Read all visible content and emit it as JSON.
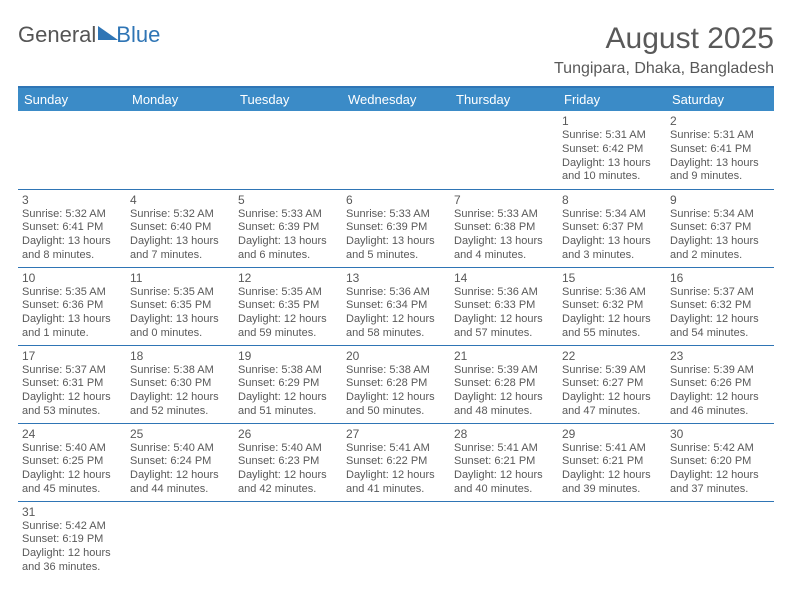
{
  "logo": {
    "general": "General",
    "blue": "Blue"
  },
  "title": "August 2025",
  "location": "Tungipara, Dhaka, Bangladesh",
  "colors": {
    "header_bg": "#3b8bc7",
    "header_border": "#2f75b5",
    "cell_border": "#2f75b5",
    "text": "#595959",
    "white": "#ffffff"
  },
  "weekdays": [
    "Sunday",
    "Monday",
    "Tuesday",
    "Wednesday",
    "Thursday",
    "Friday",
    "Saturday"
  ],
  "weeks": [
    [
      null,
      null,
      null,
      null,
      null,
      {
        "n": "1",
        "sr": "Sunrise: 5:31 AM",
        "ss": "Sunset: 6:42 PM",
        "d1": "Daylight: 13 hours",
        "d2": "and 10 minutes."
      },
      {
        "n": "2",
        "sr": "Sunrise: 5:31 AM",
        "ss": "Sunset: 6:41 PM",
        "d1": "Daylight: 13 hours",
        "d2": "and 9 minutes."
      }
    ],
    [
      {
        "n": "3",
        "sr": "Sunrise: 5:32 AM",
        "ss": "Sunset: 6:41 PM",
        "d1": "Daylight: 13 hours",
        "d2": "and 8 minutes."
      },
      {
        "n": "4",
        "sr": "Sunrise: 5:32 AM",
        "ss": "Sunset: 6:40 PM",
        "d1": "Daylight: 13 hours",
        "d2": "and 7 minutes."
      },
      {
        "n": "5",
        "sr": "Sunrise: 5:33 AM",
        "ss": "Sunset: 6:39 PM",
        "d1": "Daylight: 13 hours",
        "d2": "and 6 minutes."
      },
      {
        "n": "6",
        "sr": "Sunrise: 5:33 AM",
        "ss": "Sunset: 6:39 PM",
        "d1": "Daylight: 13 hours",
        "d2": "and 5 minutes."
      },
      {
        "n": "7",
        "sr": "Sunrise: 5:33 AM",
        "ss": "Sunset: 6:38 PM",
        "d1": "Daylight: 13 hours",
        "d2": "and 4 minutes."
      },
      {
        "n": "8",
        "sr": "Sunrise: 5:34 AM",
        "ss": "Sunset: 6:37 PM",
        "d1": "Daylight: 13 hours",
        "d2": "and 3 minutes."
      },
      {
        "n": "9",
        "sr": "Sunrise: 5:34 AM",
        "ss": "Sunset: 6:37 PM",
        "d1": "Daylight: 13 hours",
        "d2": "and 2 minutes."
      }
    ],
    [
      {
        "n": "10",
        "sr": "Sunrise: 5:35 AM",
        "ss": "Sunset: 6:36 PM",
        "d1": "Daylight: 13 hours",
        "d2": "and 1 minute."
      },
      {
        "n": "11",
        "sr": "Sunrise: 5:35 AM",
        "ss": "Sunset: 6:35 PM",
        "d1": "Daylight: 13 hours",
        "d2": "and 0 minutes."
      },
      {
        "n": "12",
        "sr": "Sunrise: 5:35 AM",
        "ss": "Sunset: 6:35 PM",
        "d1": "Daylight: 12 hours",
        "d2": "and 59 minutes."
      },
      {
        "n": "13",
        "sr": "Sunrise: 5:36 AM",
        "ss": "Sunset: 6:34 PM",
        "d1": "Daylight: 12 hours",
        "d2": "and 58 minutes."
      },
      {
        "n": "14",
        "sr": "Sunrise: 5:36 AM",
        "ss": "Sunset: 6:33 PM",
        "d1": "Daylight: 12 hours",
        "d2": "and 57 minutes."
      },
      {
        "n": "15",
        "sr": "Sunrise: 5:36 AM",
        "ss": "Sunset: 6:32 PM",
        "d1": "Daylight: 12 hours",
        "d2": "and 55 minutes."
      },
      {
        "n": "16",
        "sr": "Sunrise: 5:37 AM",
        "ss": "Sunset: 6:32 PM",
        "d1": "Daylight: 12 hours",
        "d2": "and 54 minutes."
      }
    ],
    [
      {
        "n": "17",
        "sr": "Sunrise: 5:37 AM",
        "ss": "Sunset: 6:31 PM",
        "d1": "Daylight: 12 hours",
        "d2": "and 53 minutes."
      },
      {
        "n": "18",
        "sr": "Sunrise: 5:38 AM",
        "ss": "Sunset: 6:30 PM",
        "d1": "Daylight: 12 hours",
        "d2": "and 52 minutes."
      },
      {
        "n": "19",
        "sr": "Sunrise: 5:38 AM",
        "ss": "Sunset: 6:29 PM",
        "d1": "Daylight: 12 hours",
        "d2": "and 51 minutes."
      },
      {
        "n": "20",
        "sr": "Sunrise: 5:38 AM",
        "ss": "Sunset: 6:28 PM",
        "d1": "Daylight: 12 hours",
        "d2": "and 50 minutes."
      },
      {
        "n": "21",
        "sr": "Sunrise: 5:39 AM",
        "ss": "Sunset: 6:28 PM",
        "d1": "Daylight: 12 hours",
        "d2": "and 48 minutes."
      },
      {
        "n": "22",
        "sr": "Sunrise: 5:39 AM",
        "ss": "Sunset: 6:27 PM",
        "d1": "Daylight: 12 hours",
        "d2": "and 47 minutes."
      },
      {
        "n": "23",
        "sr": "Sunrise: 5:39 AM",
        "ss": "Sunset: 6:26 PM",
        "d1": "Daylight: 12 hours",
        "d2": "and 46 minutes."
      }
    ],
    [
      {
        "n": "24",
        "sr": "Sunrise: 5:40 AM",
        "ss": "Sunset: 6:25 PM",
        "d1": "Daylight: 12 hours",
        "d2": "and 45 minutes."
      },
      {
        "n": "25",
        "sr": "Sunrise: 5:40 AM",
        "ss": "Sunset: 6:24 PM",
        "d1": "Daylight: 12 hours",
        "d2": "and 44 minutes."
      },
      {
        "n": "26",
        "sr": "Sunrise: 5:40 AM",
        "ss": "Sunset: 6:23 PM",
        "d1": "Daylight: 12 hours",
        "d2": "and 42 minutes."
      },
      {
        "n": "27",
        "sr": "Sunrise: 5:41 AM",
        "ss": "Sunset: 6:22 PM",
        "d1": "Daylight: 12 hours",
        "d2": "and 41 minutes."
      },
      {
        "n": "28",
        "sr": "Sunrise: 5:41 AM",
        "ss": "Sunset: 6:21 PM",
        "d1": "Daylight: 12 hours",
        "d2": "and 40 minutes."
      },
      {
        "n": "29",
        "sr": "Sunrise: 5:41 AM",
        "ss": "Sunset: 6:21 PM",
        "d1": "Daylight: 12 hours",
        "d2": "and 39 minutes."
      },
      {
        "n": "30",
        "sr": "Sunrise: 5:42 AM",
        "ss": "Sunset: 6:20 PM",
        "d1": "Daylight: 12 hours",
        "d2": "and 37 minutes."
      }
    ],
    [
      {
        "n": "31",
        "sr": "Sunrise: 5:42 AM",
        "ss": "Sunset: 6:19 PM",
        "d1": "Daylight: 12 hours",
        "d2": "and 36 minutes."
      },
      null,
      null,
      null,
      null,
      null,
      null
    ]
  ]
}
